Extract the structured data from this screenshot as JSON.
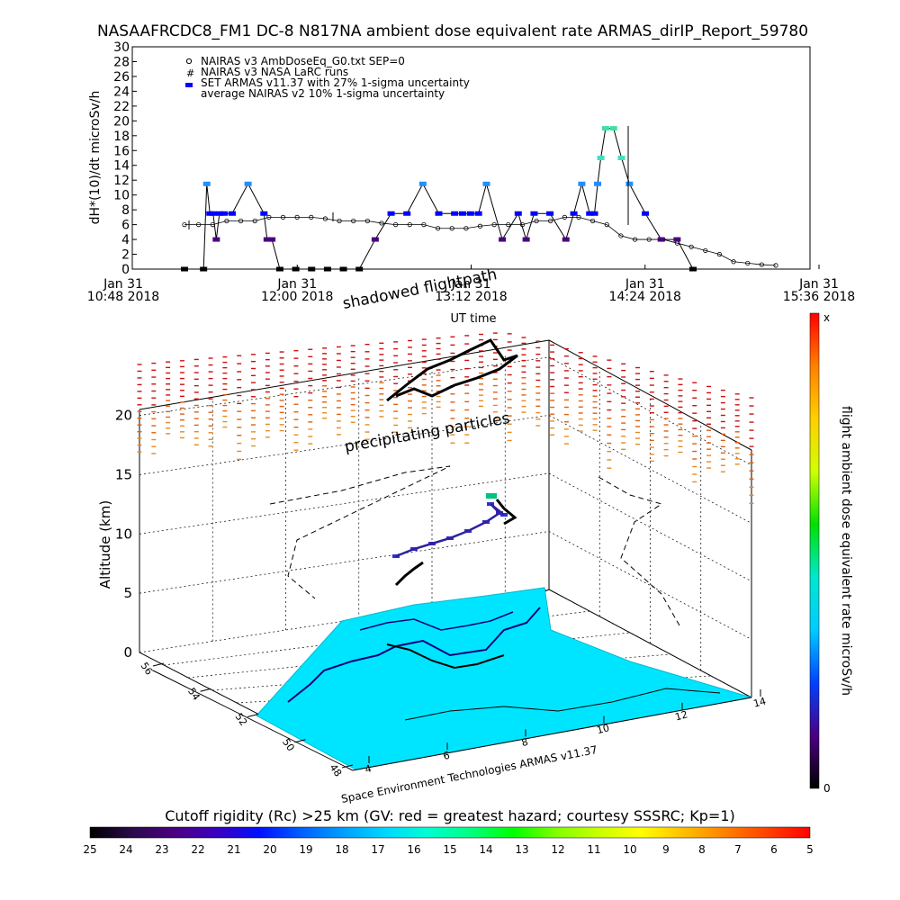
{
  "colors": {
    "nairas_v3": "#000000",
    "armas": "#0000ff",
    "armas_high": "#1e90ff",
    "dose_low": "#4b0082",
    "sea": "#00e5ff",
    "land_edge": "#000080",
    "shadow": "#000000"
  },
  "chart_data": [
    {
      "type": "line",
      "title": "NASAAFRCDC8_FM1 DC-8   N817NA ambient dose equivalent rate ARMAS_dirIP_Report_59780",
      "xlabel": "UT time",
      "ylabel": "dH*(10)/dt microSv/h",
      "ylim": [
        0,
        30
      ],
      "y_ticks": [
        "0",
        "2",
        "4",
        "6",
        "8",
        "10",
        "12",
        "14",
        "16",
        "18",
        "20",
        "22",
        "24",
        "26",
        "28",
        "30"
      ],
      "x_ticks": [
        {
          "line1": "Jan 31",
          "line2": "10:48 2018"
        },
        {
          "line1": "Jan 31",
          "line2": "12:00 2018"
        },
        {
          "line1": "Jan 31",
          "line2": "13:12 2018"
        },
        {
          "line1": "Jan 31",
          "line2": "14:24 2018"
        },
        {
          "line1": "Jan 31",
          "line2": "15:36 2018"
        }
      ],
      "legend": [
        "NAIRAS v3 AmbDoseEq_G0.txt SEP=0",
        "NAIRAS v3 NASA LaRC runs",
        "SET ARMAS v11.37 with 27% 1-sigma uncertainty",
        "average NAIRAS v2 10% 1-sigma uncertainty"
      ],
      "legend_placement": "top-left",
      "series": [
        {
          "name": "NAIRAS v3 AmbDoseEq_G0.txt SEP=0",
          "x_minutes": [
            0,
            10,
            20,
            30,
            40,
            50,
            60,
            70,
            80,
            90,
            100,
            110,
            120,
            130,
            140,
            150,
            160,
            170,
            180,
            190,
            200,
            210,
            220,
            230,
            240,
            250,
            260,
            270,
            280,
            290,
            300,
            310,
            320,
            330,
            340,
            350,
            360,
            370,
            380,
            390,
            400,
            410,
            420
          ],
          "values": [
            6,
            6,
            6,
            6.5,
            6.5,
            6.5,
            7,
            7,
            7,
            7,
            6.8,
            6.5,
            6.5,
            6.5,
            6.2,
            6,
            6,
            6,
            5.5,
            5.5,
            5.5,
            5.8,
            6,
            6,
            6,
            6.5,
            6.5,
            7,
            7,
            6.5,
            6,
            4.5,
            4,
            4,
            4,
            3.5,
            3,
            2.5,
            2,
            1,
            0.8,
            0.6,
            0.5
          ]
        },
        {
          "name": "SET ARMAS v11.37 with 27% 1-sigma uncertainty",
          "x_minutes": [
            0,
            12,
            14,
            16,
            18,
            20,
            22,
            25,
            30,
            40,
            50,
            52,
            55,
            60,
            70,
            80,
            90,
            100,
            110,
            120,
            130,
            140,
            150,
            160,
            170,
            175,
            180,
            185,
            190,
            200,
            210,
            215,
            220,
            230,
            240,
            245,
            250,
            255,
            258,
            260,
            262,
            265,
            270,
            275,
            280,
            290,
            300,
            310,
            320
          ],
          "values": [
            0,
            0,
            11.5,
            7.5,
            7.5,
            4,
            7.5,
            7.5,
            7.5,
            11.5,
            7.5,
            4,
            4,
            0,
            0,
            0,
            0,
            0,
            0,
            4,
            7.5,
            7.5,
            11.5,
            7.5,
            7.5,
            7.5,
            7.5,
            7.5,
            11.5,
            4,
            7.5,
            4,
            7.5,
            7.5,
            4,
            7.5,
            11.5,
            7.5,
            7.5,
            11.5,
            15,
            19,
            19,
            15,
            11.5,
            7.5,
            4,
            4,
            0
          ]
        }
      ]
    },
    {
      "type": "scatter",
      "title": "",
      "zlabel": "Altitude (km)",
      "z_ticks": [
        "0",
        "5",
        "10",
        "15",
        "20"
      ],
      "lat_ticks": [
        "48",
        "50",
        "52",
        "54",
        "56"
      ],
      "lon_ticks": [
        "4",
        "6",
        "8",
        "10",
        "12",
        "14"
      ],
      "annotations": [
        "shadowed flightpath",
        "precipitating particles"
      ],
      "credit": "Space Environment Technologies ARMAS v11.37",
      "colorbar": {
        "label": "flight ambient dose equivalent rate microSv/h",
        "top_label": "x",
        "bottom_label": "0",
        "colors": [
          "#ff0000",
          "#ff8000",
          "#ffd000",
          "#d0ff00",
          "#00e000",
          "#00e8d0",
          "#00ccff",
          "#0040ff",
          "#4b0082",
          "#000000"
        ]
      },
      "rigidity_bar": {
        "label": "Cutoff rigidity (Rc) >25 km (GV: red = greatest hazard; courtesy SSSRC; Kp=1)",
        "ticks": [
          "25",
          "24",
          "23",
          "22",
          "21",
          "20",
          "19",
          "18",
          "17",
          "16",
          "15",
          "14",
          "13",
          "12",
          "11",
          "10",
          "9",
          "8",
          "7",
          "6",
          "5"
        ],
        "colors": [
          "#000000",
          "#2a0a4a",
          "#4b0082",
          "#3a00c0",
          "#0010ff",
          "#0060ff",
          "#00a0ff",
          "#00d8ff",
          "#00ffd0",
          "#00ff80",
          "#00ff00",
          "#80ff00",
          "#c8ff00",
          "#ffff00",
          "#ffc000",
          "#ff8000",
          "#ff4000",
          "#ff0000"
        ]
      }
    }
  ]
}
